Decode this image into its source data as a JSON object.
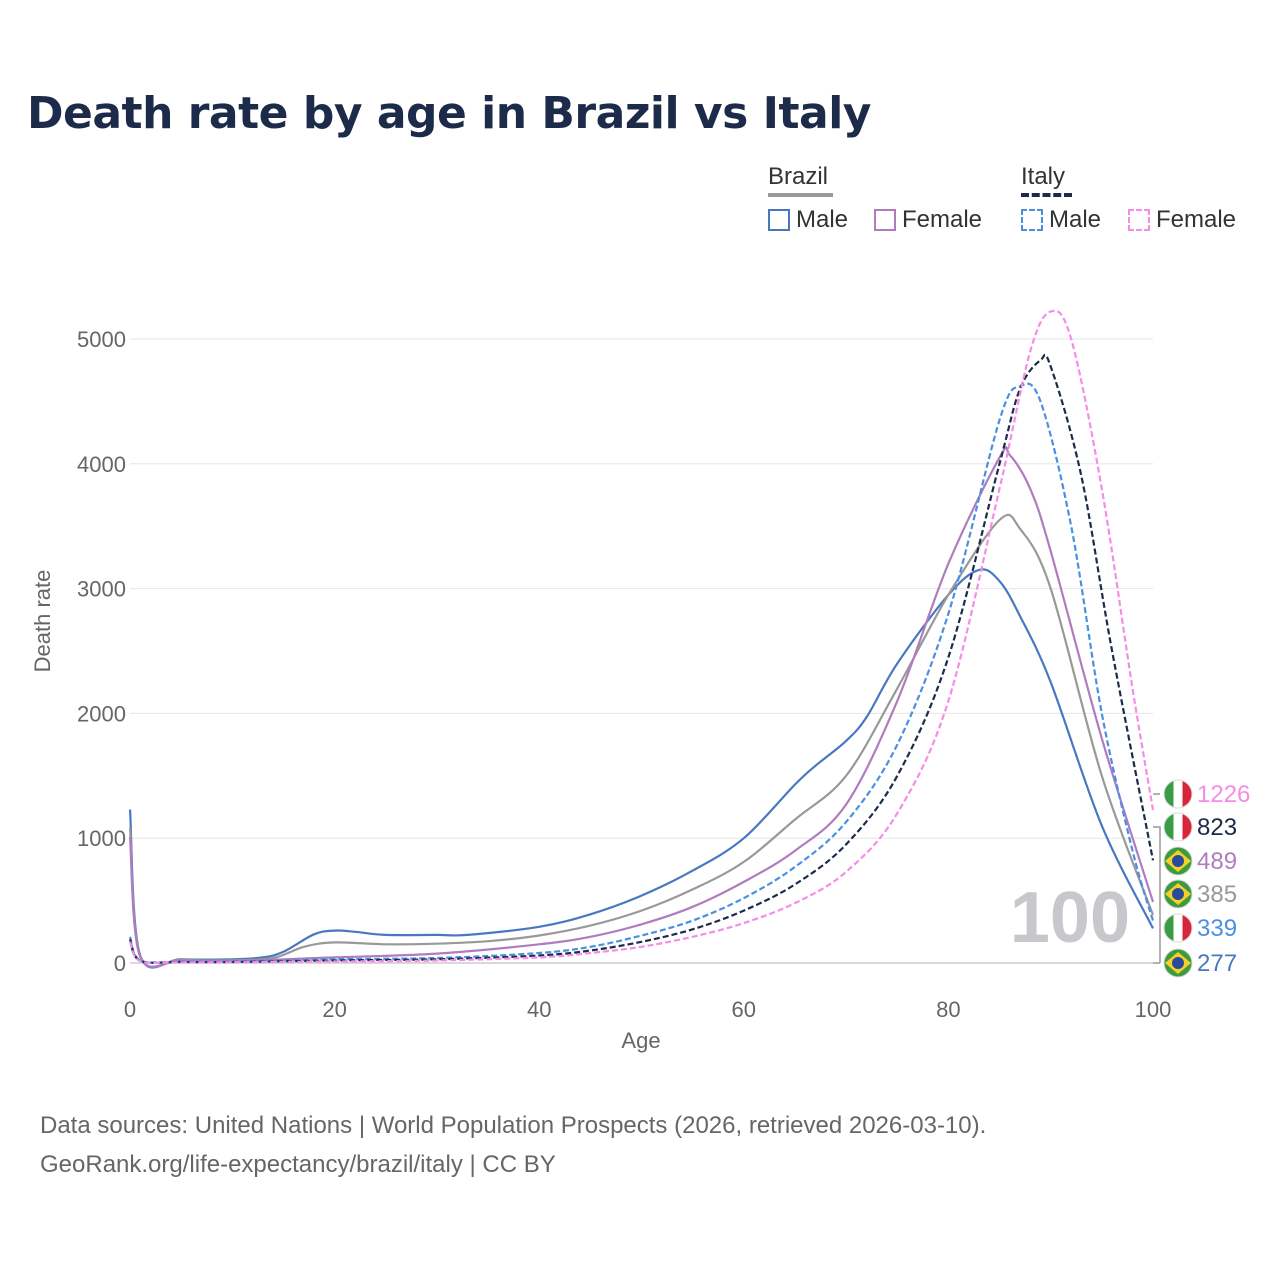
{
  "title": "Death rate by age in Brazil vs Italy",
  "legend": {
    "groups": [
      {
        "label": "Brazil",
        "underline_color": "#999999",
        "underline_dash": false,
        "items": [
          {
            "label": "Male",
            "color": "#4a78c0",
            "dashed": false
          },
          {
            "label": "Female",
            "color": "#b07cc0",
            "dashed": false
          }
        ]
      },
      {
        "label": "Italy",
        "underline_color": "#1d2b4a",
        "underline_dash": true,
        "items": [
          {
            "label": "Male",
            "color": "#4a90e2",
            "dashed": true
          },
          {
            "label": "Female",
            "color": "#f58ce6",
            "dashed": true
          }
        ]
      }
    ]
  },
  "watermark_age": "100",
  "end_labels": [
    {
      "flag": "italy",
      "value": "1226",
      "color": "#f58ce6"
    },
    {
      "flag": "italy",
      "value": "823",
      "color": "#1d2b4a"
    },
    {
      "flag": "brazil",
      "value": "489",
      "color": "#b07cc0"
    },
    {
      "flag": "brazil",
      "value": "385",
      "color": "#999999"
    },
    {
      "flag": "italy",
      "value": "339",
      "color": "#4a90e2"
    },
    {
      "flag": "brazil",
      "value": "277",
      "color": "#4a78c0"
    }
  ],
  "chart_data": {
    "type": "line",
    "title": "Death rate by age in Brazil vs Italy",
    "xlabel": "Age",
    "ylabel": "Death rate",
    "xlim": [
      0,
      100
    ],
    "ylim": [
      0,
      5000
    ],
    "xticks": [
      0,
      20,
      40,
      60,
      80,
      100
    ],
    "yticks": [
      0,
      1000,
      2000,
      3000,
      4000,
      5000
    ],
    "grid": true,
    "series": [
      {
        "name": "Brazil Male",
        "color": "#4a78c0",
        "dashed": false,
        "points": [
          [
            0,
            1230
          ],
          [
            1,
            60
          ],
          [
            5,
            30
          ],
          [
            10,
            30
          ],
          [
            13,
            45
          ],
          [
            15,
            90
          ],
          [
            18,
            230
          ],
          [
            20,
            260
          ],
          [
            22,
            250
          ],
          [
            25,
            225
          ],
          [
            30,
            225
          ],
          [
            33,
            225
          ],
          [
            40,
            290
          ],
          [
            45,
            390
          ],
          [
            50,
            540
          ],
          [
            55,
            740
          ],
          [
            60,
            1000
          ],
          [
            65,
            1430
          ],
          [
            67,
            1580
          ],
          [
            70,
            1780
          ],
          [
            72,
            1970
          ],
          [
            75,
            2400
          ],
          [
            80,
            2950
          ],
          [
            83,
            3150
          ],
          [
            85,
            3060
          ],
          [
            87,
            2780
          ],
          [
            90,
            2250
          ],
          [
            95,
            1100
          ],
          [
            100,
            277
          ]
        ]
      },
      {
        "name": "Brazil Both",
        "color": "#999999",
        "dashed": false,
        "points": [
          [
            0,
            1080
          ],
          [
            1,
            55
          ],
          [
            5,
            25
          ],
          [
            10,
            22
          ],
          [
            14,
            40
          ],
          [
            17,
            130
          ],
          [
            20,
            165
          ],
          [
            25,
            150
          ],
          [
            30,
            155
          ],
          [
            35,
            175
          ],
          [
            40,
            220
          ],
          [
            45,
            300
          ],
          [
            50,
            420
          ],
          [
            55,
            590
          ],
          [
            60,
            810
          ],
          [
            65,
            1150
          ],
          [
            70,
            1500
          ],
          [
            75,
            2200
          ],
          [
            80,
            2950
          ],
          [
            85,
            3550
          ],
          [
            87,
            3480
          ],
          [
            90,
            3000
          ],
          [
            95,
            1500
          ],
          [
            100,
            385
          ]
        ]
      },
      {
        "name": "Brazil Female",
        "color": "#b07cc0",
        "dashed": false,
        "points": [
          [
            0,
            1010
          ],
          [
            1,
            50
          ],
          [
            5,
            20
          ],
          [
            10,
            15
          ],
          [
            20,
            45
          ],
          [
            30,
            75
          ],
          [
            40,
            150
          ],
          [
            45,
            210
          ],
          [
            50,
            310
          ],
          [
            55,
            450
          ],
          [
            60,
            650
          ],
          [
            65,
            900
          ],
          [
            70,
            1270
          ],
          [
            75,
            2100
          ],
          [
            80,
            3200
          ],
          [
            85,
            4050
          ],
          [
            86,
            4070
          ],
          [
            88,
            3800
          ],
          [
            90,
            3300
          ],
          [
            95,
            1800
          ],
          [
            100,
            489
          ]
        ]
      },
      {
        "name": "Italy Male",
        "color": "#4a90e2",
        "dashed": true,
        "points": [
          [
            0,
            210
          ],
          [
            1,
            20
          ],
          [
            5,
            10
          ],
          [
            10,
            10
          ],
          [
            20,
            30
          ],
          [
            30,
            40
          ],
          [
            40,
            80
          ],
          [
            45,
            130
          ],
          [
            50,
            220
          ],
          [
            55,
            340
          ],
          [
            60,
            520
          ],
          [
            65,
            770
          ],
          [
            70,
            1130
          ],
          [
            75,
            1750
          ],
          [
            80,
            2800
          ],
          [
            85,
            4350
          ],
          [
            87,
            4620
          ],
          [
            89,
            4500
          ],
          [
            92,
            3500
          ],
          [
            95,
            2000
          ],
          [
            98,
            900
          ],
          [
            100,
            339
          ]
        ]
      },
      {
        "name": "Italy Both",
        "color": "#1d2b4a",
        "dashed": true,
        "points": [
          [
            0,
            190
          ],
          [
            1,
            18
          ],
          [
            5,
            8
          ],
          [
            10,
            8
          ],
          [
            20,
            20
          ],
          [
            30,
            30
          ],
          [
            40,
            60
          ],
          [
            45,
            100
          ],
          [
            50,
            170
          ],
          [
            55,
            270
          ],
          [
            60,
            420
          ],
          [
            65,
            630
          ],
          [
            70,
            950
          ],
          [
            75,
            1500
          ],
          [
            80,
            2450
          ],
          [
            85,
            4000
          ],
          [
            87,
            4600
          ],
          [
            89,
            4830
          ],
          [
            90,
            4780
          ],
          [
            93,
            3900
          ],
          [
            96,
            2500
          ],
          [
            100,
            823
          ]
        ]
      },
      {
        "name": "Italy Female",
        "color": "#f58ce6",
        "dashed": true,
        "points": [
          [
            0,
            170
          ],
          [
            1,
            15
          ],
          [
            5,
            6
          ],
          [
            10,
            6
          ],
          [
            20,
            12
          ],
          [
            30,
            20
          ],
          [
            40,
            45
          ],
          [
            45,
            80
          ],
          [
            50,
            130
          ],
          [
            55,
            210
          ],
          [
            60,
            320
          ],
          [
            65,
            480
          ],
          [
            70,
            730
          ],
          [
            75,
            1200
          ],
          [
            80,
            2100
          ],
          [
            85,
            3800
          ],
          [
            88,
            4900
          ],
          [
            90,
            5220
          ],
          [
            92,
            5000
          ],
          [
            95,
            3800
          ],
          [
            98,
            2200
          ],
          [
            100,
            1226
          ]
        ]
      }
    ]
  },
  "footer": {
    "line1": "Data sources: United Nations | World Population Prospects (2026, retrieved 2026-03-10).",
    "line2": "GeoRank.org/life-expectancy/brazil/italy | CC BY"
  }
}
